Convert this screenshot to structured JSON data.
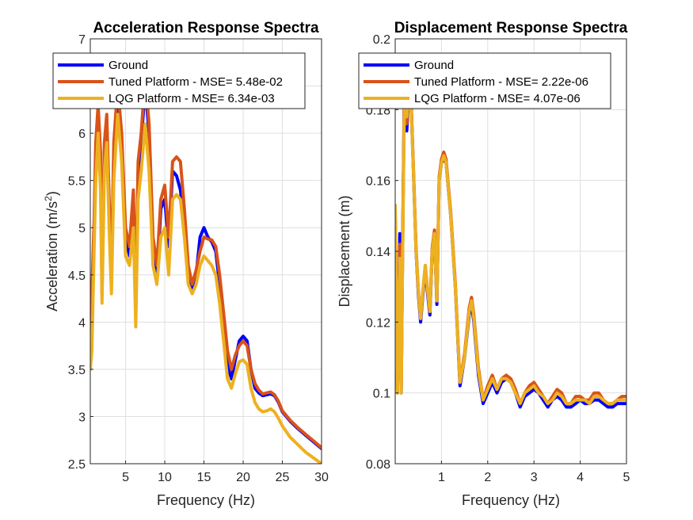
{
  "chart_data": [
    {
      "type": "line",
      "title": "Acceleration Response Spectra",
      "xlabel": "Frequency (Hz)",
      "ylabel": "Acceleration (m/s",
      "ylabel_sup": "2",
      "ylabel_end": ")",
      "xlim": [
        0.5,
        30
      ],
      "ylim": [
        2.5,
        7
      ],
      "xticks": [
        5,
        10,
        15,
        20,
        25,
        30
      ],
      "xtick_labels": [
        "5",
        "10",
        "15",
        "20",
        "25",
        "30"
      ],
      "yticks": [
        2.5,
        3,
        3.5,
        4,
        4.5,
        5,
        5.5,
        6,
        6.5,
        7
      ],
      "ytick_labels": [
        "2.5",
        "3",
        "3.5",
        "4",
        "4.5",
        "5",
        "5.5",
        "6",
        "6.5",
        "7"
      ],
      "grid": true,
      "legend_position": "top",
      "series": [
        {
          "name": "Ground",
          "color": "#0000FF",
          "x": [
            0.5,
            0.7,
            1.0,
            1.2,
            1.5,
            1.8,
            2.0,
            2.3,
            2.6,
            2.9,
            3.2,
            3.5,
            4.0,
            4.5,
            5.0,
            5.5,
            6.0,
            6.3,
            6.6,
            7.0,
            7.5,
            8.0,
            8.5,
            9.0,
            9.5,
            10.0,
            10.5,
            11.0,
            11.5,
            12.0,
            12.5,
            13.0,
            13.5,
            14.0,
            14.5,
            15.0,
            15.5,
            16.0,
            16.5,
            17.0,
            17.5,
            18.0,
            18.5,
            19.0,
            19.5,
            20.0,
            20.5,
            21.0,
            21.5,
            22.0,
            22.5,
            23.0,
            23.5,
            24.0,
            24.5,
            25.0,
            26.0,
            27.0,
            28.0,
            29.0,
            30.0
          ],
          "y": [
            3.7,
            4.2,
            5.0,
            5.8,
            6.2,
            5.7,
            4.3,
            5.8,
            6.1,
            5.2,
            4.4,
            5.8,
            6.4,
            5.9,
            4.9,
            4.7,
            5.3,
            4.1,
            5.6,
            5.9,
            6.5,
            6.0,
            4.8,
            4.5,
            5.2,
            5.3,
            4.8,
            5.6,
            5.55,
            5.4,
            5.0,
            4.5,
            4.35,
            4.5,
            4.9,
            5.0,
            4.9,
            4.85,
            4.75,
            4.4,
            4.0,
            3.55,
            3.4,
            3.6,
            3.8,
            3.85,
            3.8,
            3.5,
            3.3,
            3.25,
            3.22,
            3.23,
            3.24,
            3.22,
            3.15,
            3.05,
            2.95,
            2.87,
            2.8,
            2.73,
            2.66
          ]
        },
        {
          "name": "Tuned Platform - MSE= 5.48e-02",
          "color": "#D95319",
          "x": [
            0.5,
            0.7,
            1.0,
            1.2,
            1.5,
            1.8,
            2.0,
            2.3,
            2.6,
            2.9,
            3.2,
            3.5,
            4.0,
            4.5,
            5.0,
            5.5,
            6.0,
            6.3,
            6.6,
            7.0,
            7.5,
            8.0,
            8.5,
            9.0,
            9.5,
            10.0,
            10.5,
            11.0,
            11.5,
            12.0,
            12.5,
            13.0,
            13.5,
            14.0,
            14.5,
            15.0,
            15.5,
            16.0,
            16.5,
            17.0,
            17.5,
            18.0,
            18.5,
            19.0,
            19.5,
            20.0,
            20.5,
            21.0,
            21.5,
            22.0,
            22.5,
            23.0,
            23.5,
            24.0,
            24.5,
            25.0,
            26.0,
            27.0,
            28.0,
            29.0,
            30.0
          ],
          "y": [
            3.8,
            4.3,
            5.1,
            5.9,
            6.3,
            5.8,
            4.4,
            5.9,
            6.2,
            5.3,
            4.5,
            5.9,
            6.5,
            6.0,
            5.0,
            4.8,
            5.4,
            4.2,
            5.7,
            6.0,
            6.6,
            6.1,
            4.9,
            4.6,
            5.3,
            5.45,
            4.9,
            5.7,
            5.75,
            5.7,
            5.2,
            4.6,
            4.4,
            4.55,
            4.75,
            4.9,
            4.88,
            4.87,
            4.8,
            4.5,
            4.1,
            3.7,
            3.5,
            3.65,
            3.75,
            3.8,
            3.75,
            3.5,
            3.35,
            3.28,
            3.24,
            3.25,
            3.26,
            3.23,
            3.16,
            3.06,
            2.96,
            2.88,
            2.81,
            2.74,
            2.67
          ]
        },
        {
          "name": "LQG Platform - MSE= 6.34e-03",
          "color": "#EDB120",
          "x": [
            0.5,
            0.7,
            1.0,
            1.2,
            1.5,
            1.8,
            2.0,
            2.3,
            2.6,
            2.9,
            3.2,
            3.5,
            4.0,
            4.5,
            5.0,
            5.5,
            6.0,
            6.3,
            6.6,
            7.0,
            7.5,
            8.0,
            8.5,
            9.0,
            9.5,
            10.0,
            10.5,
            11.0,
            11.5,
            12.0,
            12.5,
            13.0,
            13.5,
            14.0,
            14.5,
            15.0,
            15.5,
            16.0,
            16.5,
            17.0,
            17.5,
            18.0,
            18.5,
            19.0,
            19.5,
            20.0,
            20.5,
            21.0,
            21.5,
            22.0,
            22.5,
            23.0,
            23.5,
            24.0,
            24.5,
            25.0,
            26.0,
            27.0,
            28.0,
            29.0,
            30.0
          ],
          "y": [
            3.5,
            3.7,
            4.8,
            5.5,
            6.0,
            5.4,
            4.2,
            5.6,
            5.9,
            5.0,
            4.3,
            5.5,
            6.2,
            5.7,
            4.7,
            4.6,
            5.0,
            3.95,
            5.3,
            5.6,
            6.1,
            5.6,
            4.6,
            4.4,
            4.9,
            5.0,
            4.5,
            5.3,
            5.35,
            5.3,
            4.9,
            4.4,
            4.3,
            4.4,
            4.6,
            4.7,
            4.65,
            4.6,
            4.5,
            4.2,
            3.8,
            3.4,
            3.3,
            3.45,
            3.58,
            3.6,
            3.55,
            3.3,
            3.15,
            3.08,
            3.05,
            3.06,
            3.08,
            3.05,
            2.98,
            2.9,
            2.78,
            2.7,
            2.62,
            2.56,
            2.5
          ]
        }
      ]
    },
    {
      "type": "line",
      "title": "Displacement Response Spectra",
      "xlabel": "Frequency (Hz)",
      "ylabel": "Displacement (m)",
      "xlim": [
        0.0,
        5
      ],
      "ylim": [
        0.08,
        0.2
      ],
      "xticks": [
        1,
        2,
        3,
        4,
        5
      ],
      "xtick_labels": [
        "1",
        "2",
        "3",
        "4",
        "5"
      ],
      "yticks": [
        0.08,
        0.1,
        0.12,
        0.14,
        0.16,
        0.18,
        0.2
      ],
      "ytick_labels": [
        "0.08",
        "0.1",
        "0.12",
        "0.14",
        "0.16",
        "0.18",
        "0.2"
      ],
      "grid": true,
      "legend_position": "top",
      "series": [
        {
          "name": "Ground",
          "color": "#0000FF",
          "x": [
            0.0,
            0.05,
            0.1,
            0.13,
            0.16,
            0.2,
            0.25,
            0.3,
            0.35,
            0.4,
            0.45,
            0.5,
            0.55,
            0.6,
            0.65,
            0.7,
            0.75,
            0.8,
            0.85,
            0.9,
            0.95,
            1.0,
            1.05,
            1.1,
            1.2,
            1.3,
            1.4,
            1.5,
            1.6,
            1.65,
            1.7,
            1.8,
            1.9,
            2.0,
            2.1,
            2.2,
            2.3,
            2.4,
            2.5,
            2.6,
            2.7,
            2.8,
            2.9,
            3.0,
            3.1,
            3.2,
            3.3,
            3.4,
            3.5,
            3.6,
            3.7,
            3.8,
            3.9,
            4.0,
            4.1,
            4.2,
            4.3,
            4.4,
            4.5,
            4.6,
            4.7,
            4.8,
            4.9,
            5.0
          ],
          "y": [
            0.15,
            0.1,
            0.145,
            0.1,
            0.14,
            0.19,
            0.174,
            0.186,
            0.18,
            0.16,
            0.14,
            0.128,
            0.12,
            0.128,
            0.135,
            0.128,
            0.122,
            0.14,
            0.145,
            0.125,
            0.16,
            0.165,
            0.166,
            0.165,
            0.15,
            0.13,
            0.102,
            0.11,
            0.122,
            0.125,
            0.12,
            0.105,
            0.097,
            0.1,
            0.103,
            0.1,
            0.103,
            0.104,
            0.103,
            0.1,
            0.096,
            0.099,
            0.1,
            0.101,
            0.1,
            0.098,
            0.096,
            0.098,
            0.099,
            0.098,
            0.096,
            0.096,
            0.097,
            0.098,
            0.097,
            0.097,
            0.098,
            0.098,
            0.097,
            0.096,
            0.096,
            0.097,
            0.097,
            0.097
          ]
        },
        {
          "name": "Tuned Platform - MSE= 2.22e-06",
          "color": "#D95319",
          "x": [
            0.0,
            0.05,
            0.1,
            0.13,
            0.16,
            0.2,
            0.25,
            0.3,
            0.35,
            0.4,
            0.45,
            0.5,
            0.55,
            0.6,
            0.65,
            0.7,
            0.75,
            0.8,
            0.85,
            0.9,
            0.95,
            1.0,
            1.05,
            1.1,
            1.2,
            1.3,
            1.4,
            1.5,
            1.6,
            1.65,
            1.7,
            1.8,
            1.9,
            2.0,
            2.1,
            2.2,
            2.3,
            2.4,
            2.5,
            2.6,
            2.7,
            2.8,
            2.9,
            3.0,
            3.1,
            3.2,
            3.3,
            3.4,
            3.5,
            3.6,
            3.7,
            3.8,
            3.9,
            4.0,
            4.1,
            4.2,
            4.3,
            4.4,
            4.5,
            4.6,
            4.7,
            4.8,
            4.9,
            5.0
          ],
          "y": [
            0.151,
            0.101,
            0.142,
            0.101,
            0.139,
            0.188,
            0.176,
            0.185,
            0.18,
            0.161,
            0.141,
            0.129,
            0.121,
            0.129,
            0.136,
            0.129,
            0.123,
            0.141,
            0.146,
            0.126,
            0.161,
            0.166,
            0.168,
            0.166,
            0.151,
            0.131,
            0.103,
            0.111,
            0.124,
            0.127,
            0.122,
            0.107,
            0.098,
            0.102,
            0.105,
            0.101,
            0.104,
            0.105,
            0.104,
            0.101,
            0.097,
            0.1,
            0.102,
            0.103,
            0.101,
            0.099,
            0.097,
            0.099,
            0.101,
            0.1,
            0.097,
            0.097,
            0.099,
            0.099,
            0.098,
            0.098,
            0.1,
            0.1,
            0.098,
            0.097,
            0.097,
            0.098,
            0.099,
            0.099
          ]
        },
        {
          "name": "LQG Platform - MSE= 4.07e-06",
          "color": "#EDB120",
          "x": [
            0.0,
            0.05,
            0.1,
            0.13,
            0.16,
            0.2,
            0.25,
            0.3,
            0.35,
            0.4,
            0.45,
            0.5,
            0.55,
            0.6,
            0.65,
            0.7,
            0.75,
            0.8,
            0.85,
            0.9,
            0.95,
            1.0,
            1.05,
            1.1,
            1.2,
            1.3,
            1.4,
            1.5,
            1.6,
            1.65,
            1.7,
            1.8,
            1.9,
            2.0,
            2.1,
            2.2,
            2.3,
            2.4,
            2.5,
            2.6,
            2.7,
            2.8,
            2.9,
            3.0,
            3.1,
            3.2,
            3.3,
            3.4,
            3.5,
            3.6,
            3.7,
            3.8,
            3.9,
            4.0,
            4.1,
            4.2,
            4.3,
            4.4,
            4.5,
            4.6,
            4.7,
            4.8,
            4.9,
            5.0
          ],
          "y": [
            0.153,
            0.1,
            0.138,
            0.1,
            0.137,
            0.185,
            0.178,
            0.184,
            0.179,
            0.16,
            0.14,
            0.129,
            0.121,
            0.129,
            0.136,
            0.129,
            0.123,
            0.14,
            0.145,
            0.126,
            0.16,
            0.165,
            0.167,
            0.165,
            0.15,
            0.13,
            0.103,
            0.11,
            0.123,
            0.126,
            0.121,
            0.106,
            0.098,
            0.101,
            0.104,
            0.101,
            0.104,
            0.104,
            0.103,
            0.1,
            0.097,
            0.1,
            0.101,
            0.102,
            0.1,
            0.099,
            0.097,
            0.098,
            0.1,
            0.099,
            0.097,
            0.097,
            0.098,
            0.098,
            0.098,
            0.097,
            0.099,
            0.099,
            0.098,
            0.097,
            0.097,
            0.098,
            0.098,
            0.098
          ]
        }
      ]
    }
  ]
}
